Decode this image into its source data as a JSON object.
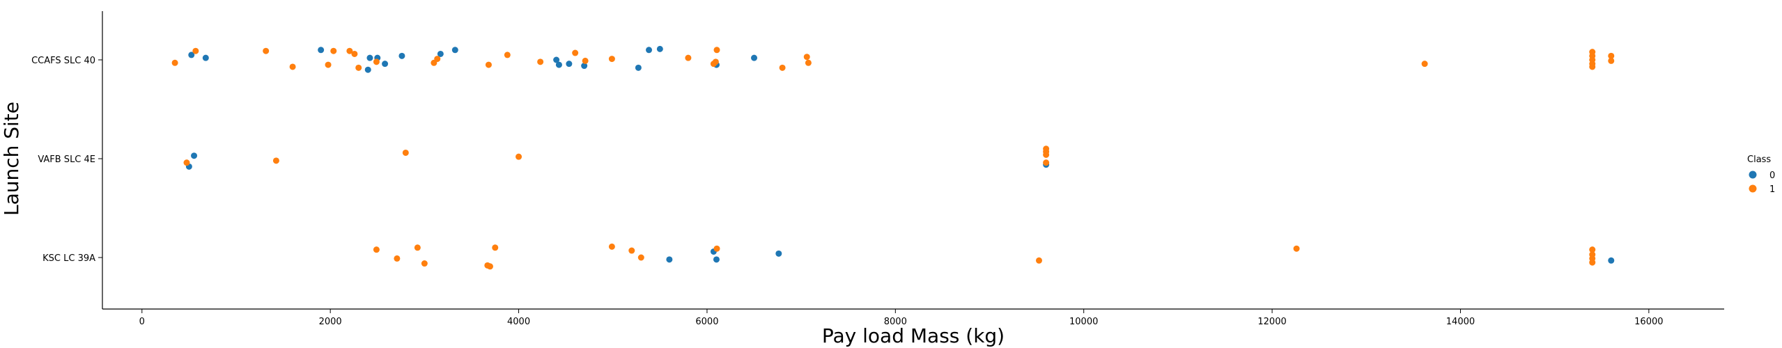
{
  "chart_data": {
    "type": "scatter",
    "xlabel": "Pay load Mass (kg)",
    "ylabel": "Launch Site",
    "categories": [
      "CCAFS SLC 40",
      "VAFB SLC 4E",
      "KSC LC 39A"
    ],
    "xlim": [
      -420,
      16800
    ],
    "xticks": [
      0,
      2000,
      4000,
      6000,
      8000,
      10000,
      12000,
      14000,
      16000
    ],
    "grid": false,
    "legend": {
      "title": "Class",
      "placement": "right",
      "entries": [
        "0",
        "1"
      ]
    },
    "colors": {
      "0": "#1f77b4",
      "1": "#ff7f0e"
    },
    "points": [
      {
        "site": "CCAFS SLC 40",
        "x": 525,
        "j": 0.05,
        "c": 0
      },
      {
        "site": "CCAFS SLC 40",
        "x": 677,
        "j": 0.02,
        "c": 0
      },
      {
        "site": "CCAFS SLC 40",
        "x": 1900,
        "j": 0.1,
        "c": 0
      },
      {
        "site": "CCAFS SLC 40",
        "x": 2400,
        "j": -0.1,
        "c": 0
      },
      {
        "site": "CCAFS SLC 40",
        "x": 2420,
        "j": 0.02,
        "c": 0
      },
      {
        "site": "CCAFS SLC 40",
        "x": 2500,
        "j": 0.02,
        "c": 0
      },
      {
        "site": "CCAFS SLC 40",
        "x": 2580,
        "j": -0.04,
        "c": 0
      },
      {
        "site": "CCAFS SLC 40",
        "x": 2760,
        "j": 0.04,
        "c": 0
      },
      {
        "site": "CCAFS SLC 40",
        "x": 3170,
        "j": 0.06,
        "c": 0
      },
      {
        "site": "CCAFS SLC 40",
        "x": 3325,
        "j": 0.1,
        "c": 0
      },
      {
        "site": "CCAFS SLC 40",
        "x": 4400,
        "j": 0.0,
        "c": 0
      },
      {
        "site": "CCAFS SLC 40",
        "x": 4428,
        "j": -0.05,
        "c": 0
      },
      {
        "site": "CCAFS SLC 40",
        "x": 4535,
        "j": -0.04,
        "c": 0
      },
      {
        "site": "CCAFS SLC 40",
        "x": 4696,
        "j": -0.06,
        "c": 0
      },
      {
        "site": "CCAFS SLC 40",
        "x": 5271,
        "j": -0.08,
        "c": 0
      },
      {
        "site": "CCAFS SLC 40",
        "x": 5383,
        "j": 0.1,
        "c": 0
      },
      {
        "site": "CCAFS SLC 40",
        "x": 5500,
        "j": 0.11,
        "c": 0
      },
      {
        "site": "CCAFS SLC 40",
        "x": 6100,
        "j": -0.05,
        "c": 0
      },
      {
        "site": "CCAFS SLC 40",
        "x": 6500,
        "j": 0.02,
        "c": 0
      },
      {
        "site": "CCAFS SLC 40",
        "x": 350,
        "j": -0.03,
        "c": 1
      },
      {
        "site": "CCAFS SLC 40",
        "x": 570,
        "j": 0.09,
        "c": 1
      },
      {
        "site": "CCAFS SLC 40",
        "x": 1316,
        "j": 0.09,
        "c": 1
      },
      {
        "site": "CCAFS SLC 40",
        "x": 1600,
        "j": -0.07,
        "c": 1
      },
      {
        "site": "CCAFS SLC 40",
        "x": 1977,
        "j": -0.05,
        "c": 1
      },
      {
        "site": "CCAFS SLC 40",
        "x": 2034,
        "j": 0.09,
        "c": 1
      },
      {
        "site": "CCAFS SLC 40",
        "x": 2205,
        "j": 0.09,
        "c": 1
      },
      {
        "site": "CCAFS SLC 40",
        "x": 2257,
        "j": 0.06,
        "c": 1
      },
      {
        "site": "CCAFS SLC 40",
        "x": 2300,
        "j": -0.08,
        "c": 1
      },
      {
        "site": "CCAFS SLC 40",
        "x": 2490,
        "j": -0.02,
        "c": 1
      },
      {
        "site": "CCAFS SLC 40",
        "x": 3100,
        "j": -0.03,
        "c": 1
      },
      {
        "site": "CCAFS SLC 40",
        "x": 3136,
        "j": 0.01,
        "c": 1
      },
      {
        "site": "CCAFS SLC 40",
        "x": 3681,
        "j": -0.05,
        "c": 1
      },
      {
        "site": "CCAFS SLC 40",
        "x": 3880,
        "j": 0.05,
        "c": 1
      },
      {
        "site": "CCAFS SLC 40",
        "x": 4230,
        "j": -0.02,
        "c": 1
      },
      {
        "site": "CCAFS SLC 40",
        "x": 4600,
        "j": 0.07,
        "c": 1
      },
      {
        "site": "CCAFS SLC 40",
        "x": 4707,
        "j": -0.01,
        "c": 1
      },
      {
        "site": "CCAFS SLC 40",
        "x": 4990,
        "j": 0.01,
        "c": 1
      },
      {
        "site": "CCAFS SLC 40",
        "x": 5800,
        "j": 0.02,
        "c": 1
      },
      {
        "site": "CCAFS SLC 40",
        "x": 6070,
        "j": -0.04,
        "c": 1
      },
      {
        "site": "CCAFS SLC 40",
        "x": 6092,
        "j": -0.02,
        "c": 1
      },
      {
        "site": "CCAFS SLC 40",
        "x": 6104,
        "j": 0.1,
        "c": 1
      },
      {
        "site": "CCAFS SLC 40",
        "x": 6800,
        "j": -0.08,
        "c": 1
      },
      {
        "site": "CCAFS SLC 40",
        "x": 7060,
        "j": 0.03,
        "c": 1
      },
      {
        "site": "CCAFS SLC 40",
        "x": 7076,
        "j": -0.03,
        "c": 1
      },
      {
        "site": "CCAFS SLC 40",
        "x": 13620,
        "j": -0.04,
        "c": 1
      },
      {
        "site": "CCAFS SLC 40",
        "x": 15400,
        "j": 0.08,
        "c": 1
      },
      {
        "site": "CCAFS SLC 40",
        "x": 15400,
        "j": 0.04,
        "c": 1
      },
      {
        "site": "CCAFS SLC 40",
        "x": 15400,
        "j": 0.0,
        "c": 1
      },
      {
        "site": "CCAFS SLC 40",
        "x": 15400,
        "j": -0.04,
        "c": 1
      },
      {
        "site": "CCAFS SLC 40",
        "x": 15400,
        "j": -0.07,
        "c": 1
      },
      {
        "site": "CCAFS SLC 40",
        "x": 15600,
        "j": 0.04,
        "c": 1
      },
      {
        "site": "CCAFS SLC 40",
        "x": 15600,
        "j": -0.01,
        "c": 1
      },
      {
        "site": "VAFB SLC 4E",
        "x": 500,
        "j": -0.08,
        "c": 0
      },
      {
        "site": "VAFB SLC 4E",
        "x": 553,
        "j": 0.03,
        "c": 0
      },
      {
        "site": "VAFB SLC 4E",
        "x": 9600,
        "j": -0.06,
        "c": 0
      },
      {
        "site": "VAFB SLC 4E",
        "x": 475,
        "j": -0.04,
        "c": 1
      },
      {
        "site": "VAFB SLC 4E",
        "x": 1425,
        "j": -0.02,
        "c": 1
      },
      {
        "site": "VAFB SLC 4E",
        "x": 2800,
        "j": 0.06,
        "c": 1
      },
      {
        "site": "VAFB SLC 4E",
        "x": 4000,
        "j": 0.02,
        "c": 1
      },
      {
        "site": "VAFB SLC 4E",
        "x": 9600,
        "j": 0.1,
        "c": 1
      },
      {
        "site": "VAFB SLC 4E",
        "x": 9600,
        "j": 0.07,
        "c": 1
      },
      {
        "site": "VAFB SLC 4E",
        "x": 9600,
        "j": 0.04,
        "c": 1
      },
      {
        "site": "VAFB SLC 4E",
        "x": 9600,
        "j": -0.04,
        "c": 1
      },
      {
        "site": "KSC LC 39A",
        "x": 5600,
        "j": -0.02,
        "c": 0
      },
      {
        "site": "KSC LC 39A",
        "x": 6070,
        "j": 0.06,
        "c": 0
      },
      {
        "site": "KSC LC 39A",
        "x": 6100,
        "j": -0.02,
        "c": 0
      },
      {
        "site": "KSC LC 39A",
        "x": 6761,
        "j": 0.04,
        "c": 0
      },
      {
        "site": "KSC LC 39A",
        "x": 15600,
        "j": -0.03,
        "c": 0
      },
      {
        "site": "KSC LC 39A",
        "x": 2490,
        "j": 0.08,
        "c": 1
      },
      {
        "site": "KSC LC 39A",
        "x": 2708,
        "j": -0.01,
        "c": 1
      },
      {
        "site": "KSC LC 39A",
        "x": 2926,
        "j": 0.1,
        "c": 1
      },
      {
        "site": "KSC LC 39A",
        "x": 3000,
        "j": -0.06,
        "c": 1
      },
      {
        "site": "KSC LC 39A",
        "x": 3669,
        "j": -0.08,
        "c": 1
      },
      {
        "site": "KSC LC 39A",
        "x": 3696,
        "j": -0.09,
        "c": 1
      },
      {
        "site": "KSC LC 39A",
        "x": 3750,
        "j": 0.1,
        "c": 1
      },
      {
        "site": "KSC LC 39A",
        "x": 4990,
        "j": 0.11,
        "c": 1
      },
      {
        "site": "KSC LC 39A",
        "x": 5200,
        "j": 0.07,
        "c": 1
      },
      {
        "site": "KSC LC 39A",
        "x": 5300,
        "j": 0.0,
        "c": 1
      },
      {
        "site": "KSC LC 39A",
        "x": 6104,
        "j": 0.09,
        "c": 1
      },
      {
        "site": "KSC LC 39A",
        "x": 9525,
        "j": -0.03,
        "c": 1
      },
      {
        "site": "KSC LC 39A",
        "x": 12259,
        "j": 0.09,
        "c": 1
      },
      {
        "site": "KSC LC 39A",
        "x": 15400,
        "j": 0.08,
        "c": 1
      },
      {
        "site": "KSC LC 39A",
        "x": 15400,
        "j": 0.03,
        "c": 1
      },
      {
        "site": "KSC LC 39A",
        "x": 15400,
        "j": -0.01,
        "c": 1
      },
      {
        "site": "KSC LC 39A",
        "x": 15400,
        "j": -0.05,
        "c": 1
      }
    ]
  }
}
